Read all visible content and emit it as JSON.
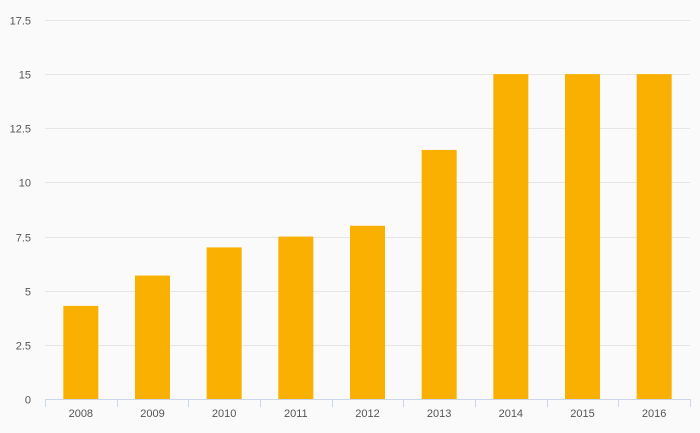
{
  "chart_data": {
    "type": "bar",
    "title": "",
    "xlabel": "",
    "ylabel": "",
    "categories": [
      "2008",
      "2009",
      "2010",
      "2011",
      "2012",
      "2013",
      "2014",
      "2015",
      "2016"
    ],
    "values": [
      4.3,
      5.7,
      7.0,
      7.5,
      8.0,
      11.5,
      15.0,
      15.0,
      15.0
    ],
    "ylim": [
      0,
      17.5
    ],
    "yticks": [
      0,
      2.5,
      5,
      7.5,
      10,
      12.5,
      15,
      17.5
    ],
    "ytick_labels": [
      "0",
      "2.5",
      "5",
      "7.5",
      "10",
      "12.5",
      "15",
      "17.5"
    ],
    "grid": true,
    "legend": "none",
    "bar_color": "#f9b000"
  }
}
